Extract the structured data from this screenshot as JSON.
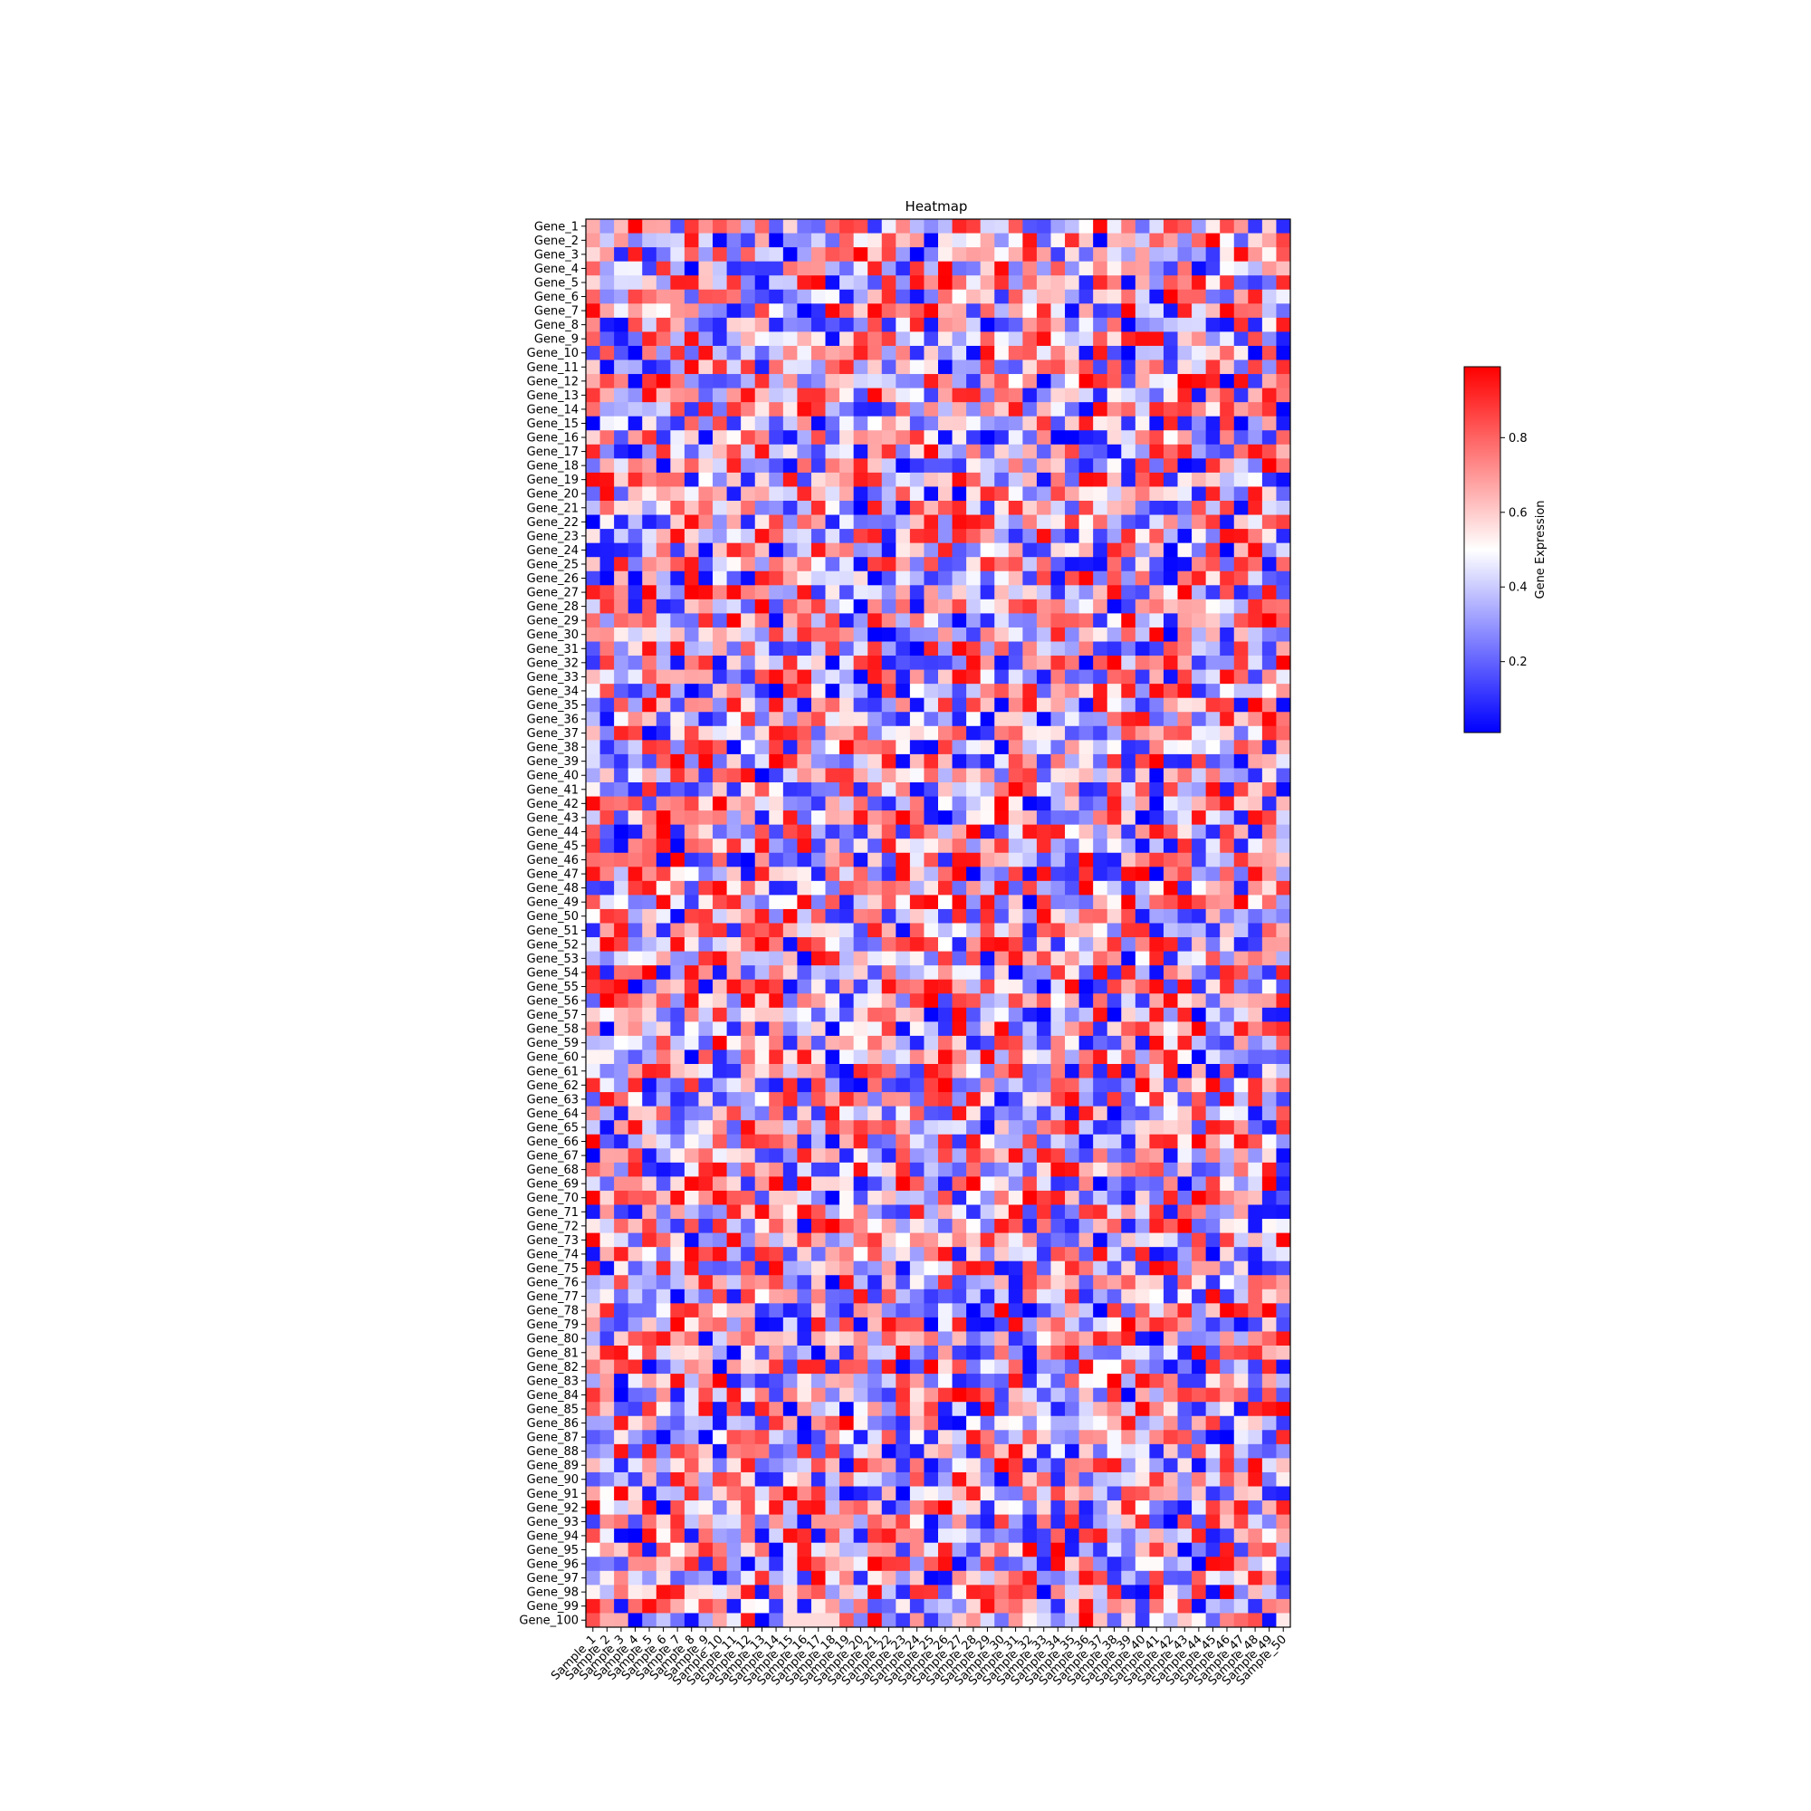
{
  "chart_data": {
    "type": "heatmap",
    "title": "Heatmap",
    "xlabel": "",
    "ylabel": "",
    "colorbar": {
      "label": "Gene Expression",
      "colormap": "bwr",
      "colors": [
        "#0000ff",
        "#ffffff",
        "#ff0000"
      ],
      "range": [
        0.01,
        0.99
      ],
      "ticks": [
        0.2,
        0.4,
        0.6,
        0.8
      ],
      "tick_labels": [
        "0.2",
        "0.4",
        "0.6",
        "0.8"
      ]
    },
    "rows": [
      "Gene_1",
      "Gene_2",
      "Gene_3",
      "Gene_4",
      "Gene_5",
      "Gene_6",
      "Gene_7",
      "Gene_8",
      "Gene_9",
      "Gene_10",
      "Gene_11",
      "Gene_12",
      "Gene_13",
      "Gene_14",
      "Gene_15",
      "Gene_16",
      "Gene_17",
      "Gene_18",
      "Gene_19",
      "Gene_20",
      "Gene_21",
      "Gene_22",
      "Gene_23",
      "Gene_24",
      "Gene_25",
      "Gene_26",
      "Gene_27",
      "Gene_28",
      "Gene_29",
      "Gene_30",
      "Gene_31",
      "Gene_32",
      "Gene_33",
      "Gene_34",
      "Gene_35",
      "Gene_36",
      "Gene_37",
      "Gene_38",
      "Gene_39",
      "Gene_40",
      "Gene_41",
      "Gene_42",
      "Gene_43",
      "Gene_44",
      "Gene_45",
      "Gene_46",
      "Gene_47",
      "Gene_48",
      "Gene_49",
      "Gene_50",
      "Gene_51",
      "Gene_52",
      "Gene_53",
      "Gene_54",
      "Gene_55",
      "Gene_56",
      "Gene_57",
      "Gene_58",
      "Gene_59",
      "Gene_60",
      "Gene_61",
      "Gene_62",
      "Gene_63",
      "Gene_64",
      "Gene_65",
      "Gene_66",
      "Gene_67",
      "Gene_68",
      "Gene_69",
      "Gene_70",
      "Gene_71",
      "Gene_72",
      "Gene_73",
      "Gene_74",
      "Gene_75",
      "Gene_76",
      "Gene_77",
      "Gene_78",
      "Gene_79",
      "Gene_80",
      "Gene_81",
      "Gene_82",
      "Gene_83",
      "Gene_84",
      "Gene_85",
      "Gene_86",
      "Gene_87",
      "Gene_88",
      "Gene_89",
      "Gene_90",
      "Gene_91",
      "Gene_92",
      "Gene_93",
      "Gene_94",
      "Gene_95",
      "Gene_96",
      "Gene_97",
      "Gene_98",
      "Gene_99",
      "Gene_100"
    ],
    "columns": [
      "Sample_1",
      "Sample_2",
      "Sample_3",
      "Sample_4",
      "Sample_5",
      "Sample_6",
      "Sample_7",
      "Sample_8",
      "Sample_9",
      "Sample_10",
      "Sample_11",
      "Sample_12",
      "Sample_13",
      "Sample_14",
      "Sample_15",
      "Sample_16",
      "Sample_17",
      "Sample_18",
      "Sample_19",
      "Sample_20",
      "Sample_21",
      "Sample_22",
      "Sample_23",
      "Sample_24",
      "Sample_25",
      "Sample_26",
      "Sample_27",
      "Sample_28",
      "Sample_29",
      "Sample_30",
      "Sample_31",
      "Sample_32",
      "Sample_33",
      "Sample_34",
      "Sample_35",
      "Sample_36",
      "Sample_37",
      "Sample_38",
      "Sample_39",
      "Sample_40",
      "Sample_41",
      "Sample_42",
      "Sample_43",
      "Sample_44",
      "Sample_45",
      "Sample_46",
      "Sample_47",
      "Sample_48",
      "Sample_49",
      "Sample_50"
    ],
    "values_note": "Cell values are random in [0,1]; individual values are not legible at this resolution."
  }
}
